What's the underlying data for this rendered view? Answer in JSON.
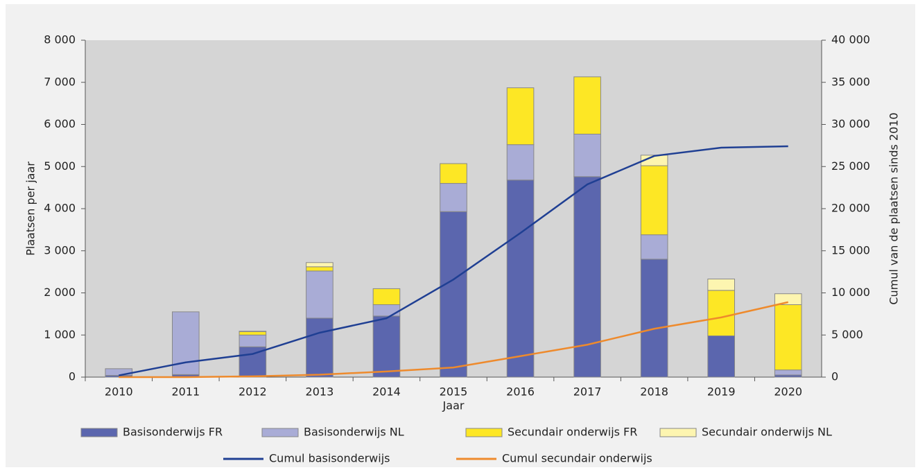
{
  "chart_data": {
    "type": "bar",
    "stacked": true,
    "xlabel": "Jaar",
    "ylabel": "Plaatsen per jaar",
    "y2label": "Cumul van de plaatsen sinds 2010",
    "categories": [
      "2010",
      "2011",
      "2012",
      "2013",
      "2014",
      "2015",
      "2016",
      "2017",
      "2018",
      "2019",
      "2020"
    ],
    "series": [
      {
        "name": "Basisonderwijs FR",
        "color": "#5b66ae",
        "type": "bar",
        "values": [
          40,
          60,
          720,
          1400,
          1450,
          3930,
          4680,
          4760,
          2800,
          980,
          50
        ]
      },
      {
        "name": "Basisonderwijs NL",
        "color": "#a9acd6",
        "type": "bar",
        "values": [
          160,
          1490,
          280,
          1120,
          270,
          670,
          840,
          1010,
          580,
          0,
          120
        ]
      },
      {
        "name": "Secundair onderwijs FR",
        "color": "#fde725",
        "type": "bar",
        "values": [
          0,
          0,
          80,
          100,
          380,
          470,
          1350,
          1360,
          1640,
          1080,
          1550
        ]
      },
      {
        "name": "Secundair onderwijs NL",
        "color": "#fdf5b0",
        "type": "bar",
        "values": [
          0,
          0,
          10,
          100,
          0,
          0,
          0,
          0,
          250,
          270,
          260
        ]
      },
      {
        "name": "Cumul basisonderwijs",
        "color": "#1f3f93",
        "type": "line",
        "axis": "y2",
        "values": [
          200,
          1750,
          2750,
          5270,
          6990,
          11590,
          17110,
          22880,
          26260,
          27240,
          27410
        ]
      },
      {
        "name": "Cumul secundair onderwijs",
        "color": "#ee8a2c",
        "type": "line",
        "axis": "y2",
        "values": [
          0,
          0,
          90,
          290,
          670,
          1140,
          2490,
          3850,
          5740,
          7090,
          8900
        ]
      }
    ],
    "ylim": [
      0,
      8000
    ],
    "yticks": [
      0,
      {
        "value": 1000,
        "label": "1 000"
      },
      {
        "value": 2000,
        "label": "2 000"
      },
      {
        "value": 3000,
        "label": "3 000"
      },
      {
        "value": 4000,
        "label": "4 000"
      },
      {
        "value": 5000,
        "label": "5 000"
      },
      {
        "value": 6000,
        "label": "6 000"
      },
      {
        "value": 7000,
        "label": "7 000"
      },
      {
        "value": 8000,
        "label": "8 000"
      }
    ],
    "y2lim": [
      0,
      40000
    ],
    "y2ticks": [
      0,
      {
        "value": 5000,
        "label": "5 000"
      },
      {
        "value": 10000,
        "label": "10 000"
      },
      {
        "value": 15000,
        "label": "15 000"
      },
      {
        "value": 20000,
        "label": "20 000"
      },
      {
        "value": 25000,
        "label": "25 000"
      },
      {
        "value": 30000,
        "label": "30 000"
      },
      {
        "value": 35000,
        "label": "35 000"
      },
      {
        "value": 40000,
        "label": "40 000"
      }
    ],
    "legend": "bottom"
  }
}
